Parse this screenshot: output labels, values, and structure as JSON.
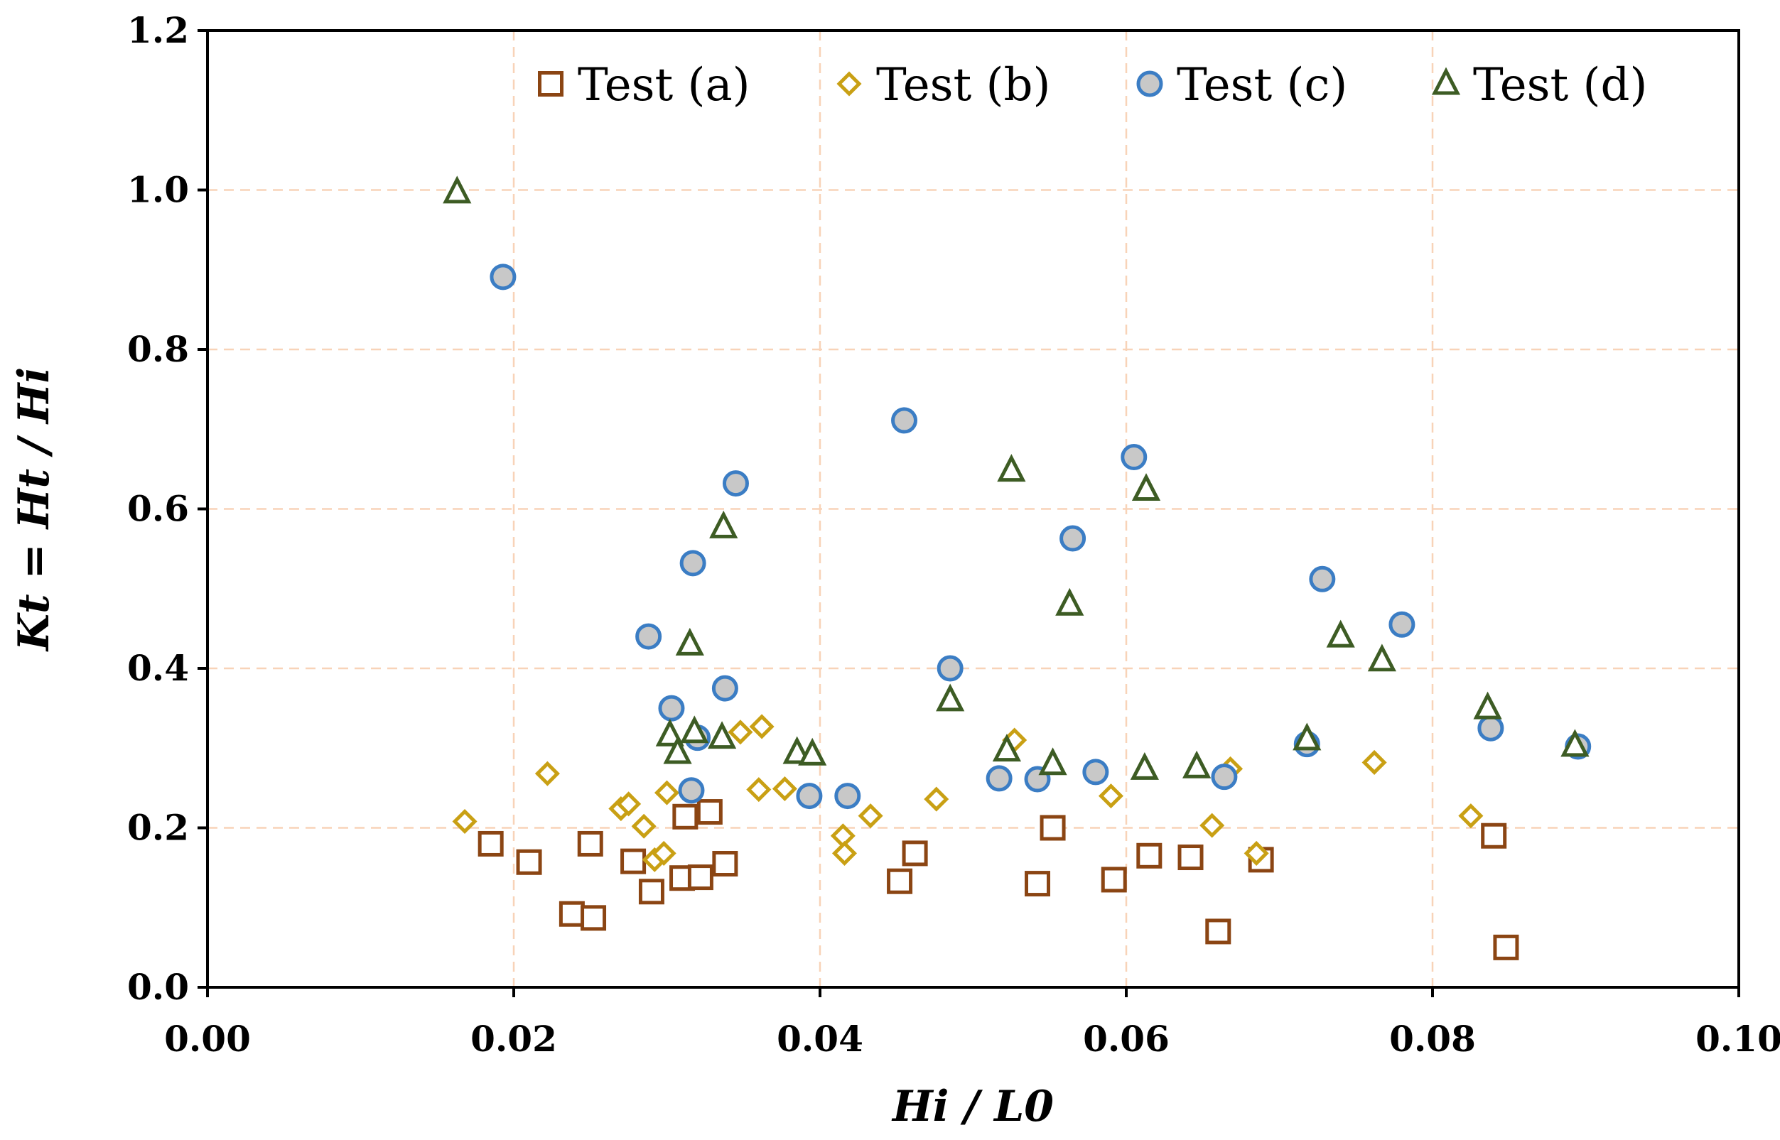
{
  "chart_data": {
    "type": "scatter",
    "xlabel": "Hi / L0",
    "ylabel": "Kt = Ht / Hi",
    "xlim": [
      0,
      0.1
    ],
    "ylim": [
      0,
      1.2
    ],
    "grid": true,
    "legend_position": "top",
    "x_ticks": [
      "0.00",
      "0.02",
      "0.04",
      "0.06",
      "0.08",
      "0.10"
    ],
    "y_ticks": [
      "0.0",
      "0.2",
      "0.4",
      "0.6",
      "0.8",
      "1.0",
      "1.2"
    ],
    "series": [
      {
        "name": "Test (a)",
        "marker": "square",
        "color": "#8B4513",
        "fill": "#ffffff",
        "points": [
          [
            0.0185,
            0.18
          ],
          [
            0.021,
            0.157
          ],
          [
            0.0238,
            0.092
          ],
          [
            0.025,
            0.18
          ],
          [
            0.0252,
            0.087
          ],
          [
            0.0278,
            0.158
          ],
          [
            0.029,
            0.12
          ],
          [
            0.031,
            0.137
          ],
          [
            0.0312,
            0.214
          ],
          [
            0.0322,
            0.138
          ],
          [
            0.0328,
            0.22
          ],
          [
            0.0338,
            0.155
          ],
          [
            0.0452,
            0.133
          ],
          [
            0.0462,
            0.168
          ],
          [
            0.0542,
            0.13
          ],
          [
            0.0552,
            0.2
          ],
          [
            0.0592,
            0.135
          ],
          [
            0.0615,
            0.165
          ],
          [
            0.0642,
            0.163
          ],
          [
            0.066,
            0.07
          ],
          [
            0.0688,
            0.16
          ],
          [
            0.084,
            0.19
          ],
          [
            0.0848,
            0.05
          ]
        ]
      },
      {
        "name": "Test (b)",
        "marker": "diamond",
        "color": "#C9A014",
        "fill": "#ffffff",
        "points": [
          [
            0.0168,
            0.208
          ],
          [
            0.0222,
            0.268
          ],
          [
            0.027,
            0.224
          ],
          [
            0.0275,
            0.23
          ],
          [
            0.0285,
            0.202
          ],
          [
            0.0292,
            0.16
          ],
          [
            0.0298,
            0.168
          ],
          [
            0.03,
            0.244
          ],
          [
            0.0348,
            0.32
          ],
          [
            0.036,
            0.248
          ],
          [
            0.0362,
            0.327
          ],
          [
            0.0377,
            0.249
          ],
          [
            0.0415,
            0.19
          ],
          [
            0.0416,
            0.168
          ],
          [
            0.0433,
            0.215
          ],
          [
            0.0476,
            0.236
          ],
          [
            0.0527,
            0.31
          ],
          [
            0.059,
            0.24
          ],
          [
            0.0656,
            0.203
          ],
          [
            0.0668,
            0.274
          ],
          [
            0.0685,
            0.168
          ],
          [
            0.0762,
            0.282
          ],
          [
            0.0825,
            0.215
          ]
        ]
      },
      {
        "name": "Test (c)",
        "marker": "circle",
        "color": "#3B7DC4",
        "fill": "#C8C8C8",
        "points": [
          [
            0.0193,
            0.891
          ],
          [
            0.0288,
            0.44
          ],
          [
            0.0303,
            0.35
          ],
          [
            0.0316,
            0.247
          ],
          [
            0.0317,
            0.532
          ],
          [
            0.032,
            0.313
          ],
          [
            0.0338,
            0.375
          ],
          [
            0.0345,
            0.632
          ],
          [
            0.0393,
            0.24
          ],
          [
            0.0418,
            0.24
          ],
          [
            0.0455,
            0.711
          ],
          [
            0.0485,
            0.4
          ],
          [
            0.0517,
            0.262
          ],
          [
            0.0542,
            0.261
          ],
          [
            0.0565,
            0.563
          ],
          [
            0.058,
            0.27
          ],
          [
            0.0605,
            0.665
          ],
          [
            0.0664,
            0.264
          ],
          [
            0.0718,
            0.305
          ],
          [
            0.0728,
            0.512
          ],
          [
            0.078,
            0.455
          ],
          [
            0.0838,
            0.325
          ],
          [
            0.0895,
            0.302
          ]
        ]
      },
      {
        "name": "Test (d)",
        "marker": "triangle",
        "color": "#3D5C24",
        "fill": "#ffffff",
        "points": [
          [
            0.0163,
            0.997
          ],
          [
            0.0302,
            0.316
          ],
          [
            0.0307,
            0.294
          ],
          [
            0.0315,
            0.43
          ],
          [
            0.0318,
            0.32
          ],
          [
            0.0336,
            0.313
          ],
          [
            0.0337,
            0.577
          ],
          [
            0.0385,
            0.294
          ],
          [
            0.0395,
            0.292
          ],
          [
            0.0485,
            0.36
          ],
          [
            0.0522,
            0.297
          ],
          [
            0.0525,
            0.648
          ],
          [
            0.0552,
            0.28
          ],
          [
            0.0563,
            0.48
          ],
          [
            0.0612,
            0.274
          ],
          [
            0.0613,
            0.624
          ],
          [
            0.0646,
            0.276
          ],
          [
            0.0718,
            0.311
          ],
          [
            0.074,
            0.44
          ],
          [
            0.0767,
            0.41
          ],
          [
            0.0836,
            0.35
          ],
          [
            0.0893,
            0.303
          ]
        ]
      }
    ]
  }
}
